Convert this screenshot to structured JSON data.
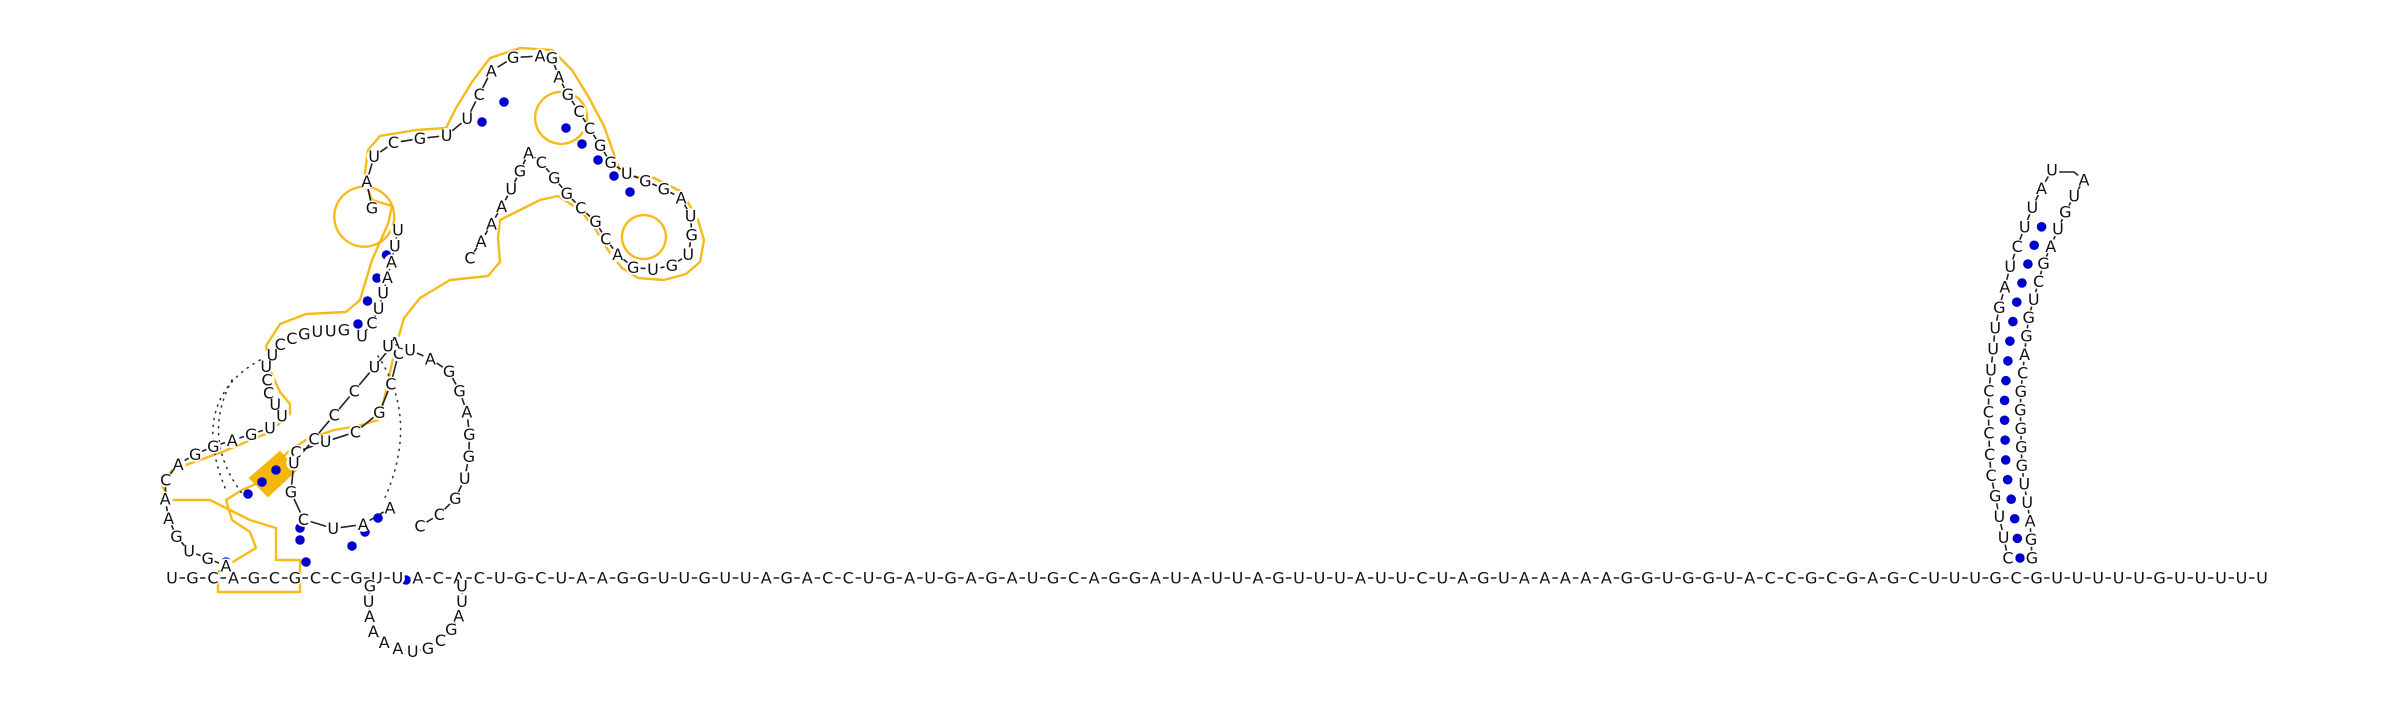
{
  "diagram": {
    "type": "rna-secondary-structure",
    "colors": {
      "base_pair": "#0000cc",
      "highlight": "#f5b300",
      "nucleotide_text": "#111111",
      "background": "#ffffff"
    },
    "baseline_sequence": "UGCAGCGCCGUUACACUGCUAAGGUUGUUAGACCUGAUGAGAUGCAGGAUAUUAGUUUAUUCUAGUAAAAAGGUGGUACCGCGAGCUUUGCGUUUUUGUUUUU",
    "left_domain": {
      "upper_left_strand": "GAUCGUUCAGA",
      "upper_right_strand": "GAGCCGGUGGAUGUGUGACGCGGCAGUAAAC",
      "mid_left_strand": "UUAAUUCU",
      "junction_strand": "GUUGCCUUCCUU",
      "lower_left_strand": "UGAGGACAAGUGA",
      "lower_inner_strand": "CUCGCCAUCCCUGCUAA",
      "right_arc": "UUAGGAGGUGCC",
      "bottom_loop": "GUAAAAUGCGAUU"
    },
    "right_hairpin": {
      "five_prime_strand": "CUUGCCCCCUUUGAUCUUAU",
      "three_prime_strand": "GGAUUGGGGGCAGGUCGAUGUA"
    }
  }
}
